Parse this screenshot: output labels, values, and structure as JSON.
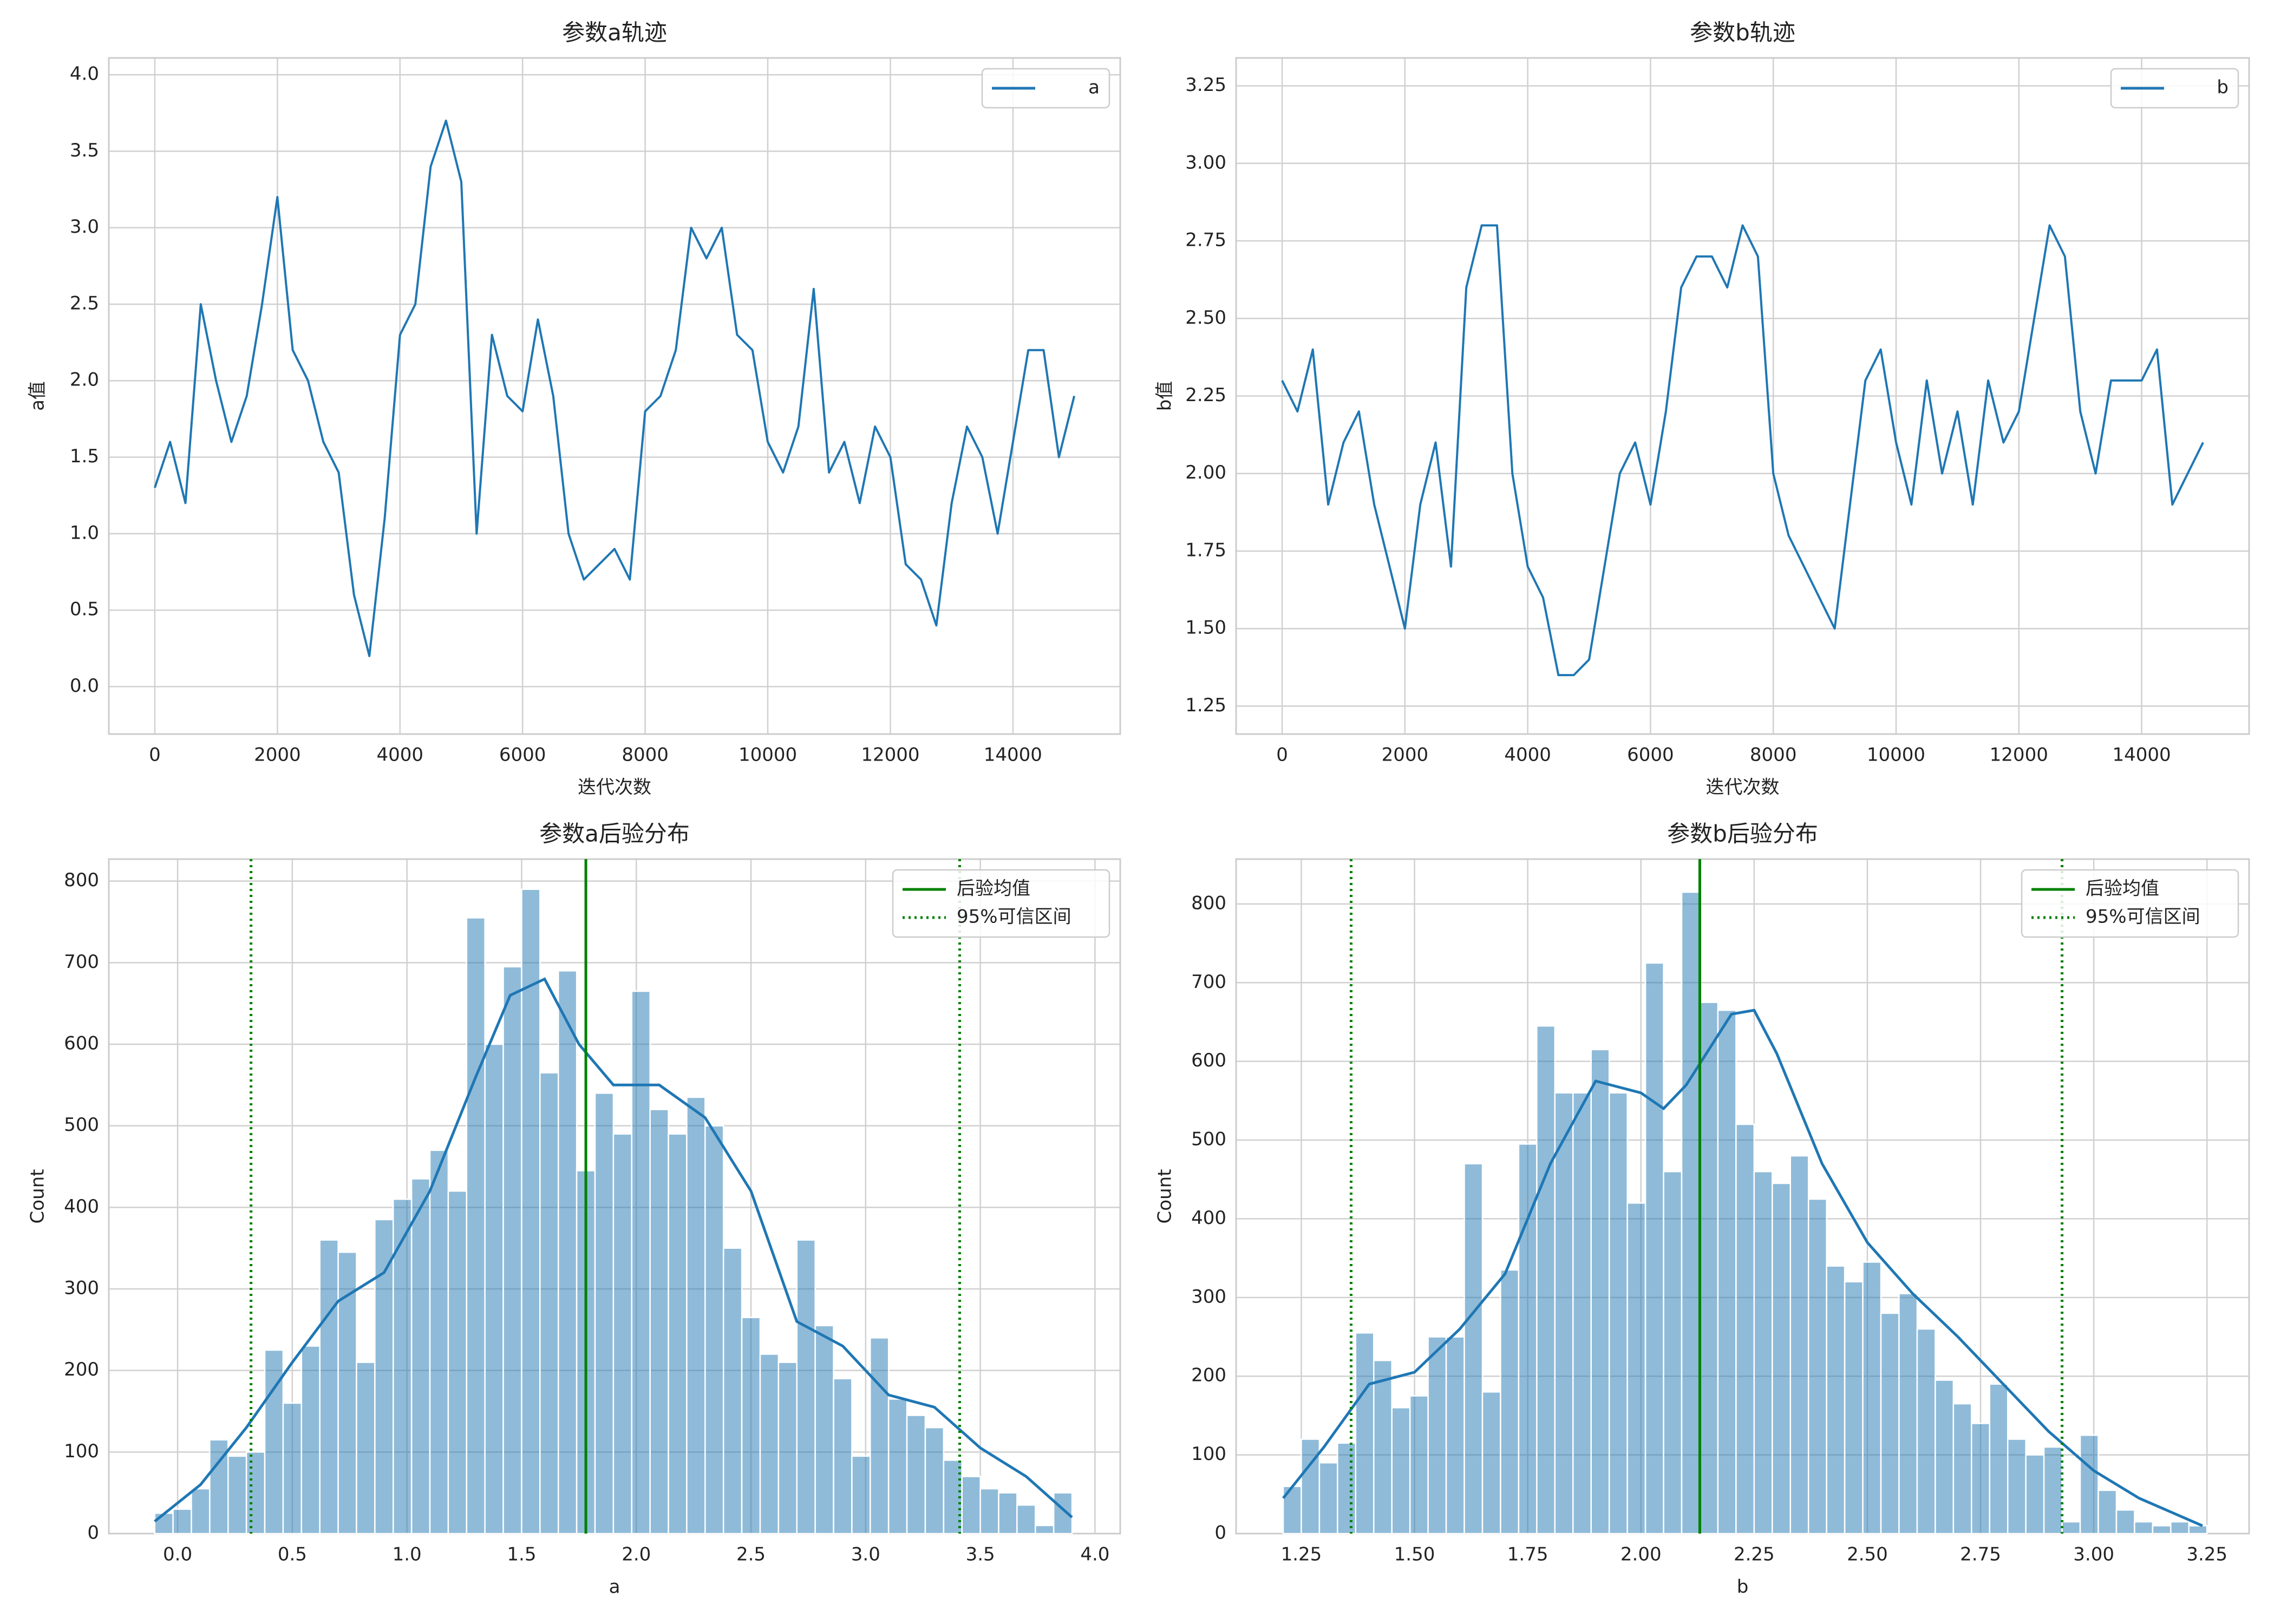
{
  "chart_data": [
    {
      "type": "line",
      "title": "参数a轨迹",
      "xlabel": "迭代次数",
      "ylabel": "a值",
      "x": [
        0,
        250,
        500,
        750,
        1000,
        1250,
        1500,
        1750,
        2000,
        2250,
        2500,
        2750,
        3000,
        3250,
        3500,
        3750,
        4000,
        4250,
        4500,
        4750,
        5000,
        5250,
        5500,
        5750,
        6000,
        6250,
        6500,
        6750,
        7000,
        7250,
        7500,
        7750,
        8000,
        8250,
        8500,
        8750,
        9000,
        9250,
        9500,
        9750,
        10000,
        10250,
        10500,
        10750,
        11000,
        11250,
        11500,
        11750,
        12000,
        12250,
        12500,
        12750,
        13000,
        13250,
        13500,
        13750,
        14000,
        14250,
        14500,
        14750,
        15000
      ],
      "series": [
        {
          "name": "a",
          "color": "#1f77b4",
          "values": [
            1.3,
            1.6,
            1.2,
            2.5,
            2.0,
            1.6,
            1.9,
            2.5,
            3.2,
            2.2,
            2.0,
            1.6,
            1.4,
            0.6,
            0.2,
            1.1,
            2.3,
            2.5,
            3.4,
            3.7,
            3.3,
            1.0,
            2.3,
            1.9,
            1.8,
            2.4,
            1.9,
            1.0,
            0.7,
            0.8,
            0.9,
            0.7,
            1.8,
            1.9,
            2.2,
            3.0,
            2.8,
            3.0,
            2.3,
            2.2,
            1.6,
            1.4,
            1.7,
            2.6,
            1.4,
            1.6,
            1.2,
            1.7,
            1.5,
            0.8,
            0.7,
            0.4,
            1.2,
            1.7,
            1.5,
            1.0,
            1.6,
            2.2,
            2.2,
            1.5,
            1.9
          ]
        }
      ],
      "xlim": [
        -750,
        15750
      ],
      "xticks": [
        0,
        2000,
        4000,
        6000,
        8000,
        10000,
        12000,
        14000
      ],
      "ylim": [
        -0.31,
        4.11
      ],
      "yticks": [
        {
          "value": 0,
          "label": "0.0"
        },
        0.5,
        {
          "value": 1,
          "label": "1.0"
        },
        1.5,
        {
          "value": 2,
          "label": "2.0"
        },
        2.5,
        {
          "value": 3,
          "label": "3.0"
        },
        3.5,
        {
          "value": 4,
          "label": "4.0"
        }
      ],
      "grid": true,
      "legend": "upper right"
    },
    {
      "type": "line",
      "title": "参数b轨迹",
      "xlabel": "迭代次数",
      "ylabel": "b值",
      "x": [
        0,
        250,
        500,
        750,
        1000,
        1250,
        1500,
        1750,
        2000,
        2250,
        2500,
        2750,
        3000,
        3250,
        3500,
        3750,
        4000,
        4250,
        4500,
        4750,
        5000,
        5250,
        5500,
        5750,
        6000,
        6250,
        6500,
        6750,
        7000,
        7250,
        7500,
        7750,
        8000,
        8250,
        8500,
        8750,
        9000,
        9250,
        9500,
        9750,
        10000,
        10250,
        10500,
        10750,
        11000,
        11250,
        11500,
        11750,
        12000,
        12250,
        12500,
        12750,
        13000,
        13250,
        13500,
        13750,
        14000,
        14250,
        14500,
        14750,
        15000
      ],
      "series": [
        {
          "name": "b",
          "color": "#1f77b4",
          "values": [
            2.3,
            2.2,
            2.4,
            1.9,
            2.1,
            2.2,
            1.9,
            1.7,
            1.5,
            1.9,
            2.1,
            1.7,
            2.6,
            2.8,
            2.8,
            2.0,
            1.7,
            1.6,
            1.35,
            1.35,
            1.4,
            1.7,
            2.0,
            2.1,
            1.9,
            2.2,
            2.6,
            2.7,
            2.7,
            2.6,
            2.8,
            2.7,
            2.0,
            1.8,
            1.7,
            1.6,
            1.5,
            1.9,
            2.3,
            2.4,
            2.1,
            1.9,
            2.3,
            2.0,
            2.2,
            1.9,
            2.3,
            2.1,
            2.2,
            2.5,
            2.8,
            2.7,
            2.2,
            2.0,
            2.3,
            2.3,
            2.3,
            2.4,
            1.9,
            2.0,
            2.1
          ]
        }
      ],
      "xlim": [
        -750,
        15750
      ],
      "xticks": [
        0,
        2000,
        4000,
        6000,
        8000,
        10000,
        12000,
        14000
      ],
      "ylim": [
        1.16,
        3.34
      ],
      "yticks": [
        1.25,
        {
          "value": 1.5,
          "label": "1.50"
        },
        1.75,
        {
          "value": 2,
          "label": "2.00"
        },
        2.25,
        {
          "value": 2.5,
          "label": "2.50"
        },
        2.75,
        {
          "value": 3,
          "label": "3.00"
        },
        3.25
      ],
      "grid": true,
      "legend": "upper right"
    },
    {
      "type": "histogram",
      "title": "参数a后验分布",
      "xlabel": "a",
      "ylabel": "Count",
      "color": "#1f77b4",
      "bins": [
        -0.1,
        -0.02,
        0.06,
        0.14,
        0.22,
        0.3,
        0.38,
        0.46,
        0.54,
        0.62,
        0.7,
        0.78,
        0.86,
        0.94,
        1.02,
        1.1,
        1.18,
        1.26,
        1.34,
        1.42,
        1.5,
        1.58,
        1.66,
        1.74,
        1.82,
        1.9,
        1.98,
        2.06,
        2.14,
        2.22,
        2.3,
        2.38,
        2.46,
        2.54,
        2.62,
        2.7,
        2.78,
        2.86,
        2.94,
        3.02,
        3.1,
        3.18,
        3.26,
        3.34,
        3.42,
        3.5,
        3.58,
        3.66,
        3.74,
        3.82,
        3.9
      ],
      "values": [
        25,
        30,
        55,
        115,
        95,
        100,
        225,
        160,
        230,
        360,
        345,
        210,
        385,
        410,
        435,
        470,
        420,
        755,
        600,
        695,
        790,
        565,
        690,
        445,
        540,
        490,
        665,
        520,
        490,
        535,
        500,
        350,
        265,
        220,
        210,
        360,
        255,
        190,
        95,
        240,
        165,
        145,
        130,
        90,
        70,
        55,
        50,
        35,
        10,
        50
      ],
      "kde": {
        "x": [
          -0.1,
          0.1,
          0.3,
          0.5,
          0.7,
          0.9,
          1.1,
          1.3,
          1.45,
          1.6,
          1.75,
          1.9,
          2.1,
          2.3,
          2.5,
          2.7,
          2.9,
          3.1,
          3.3,
          3.5,
          3.7,
          3.9
        ],
        "values": [
          15,
          60,
          130,
          210,
          285,
          320,
          420,
          560,
          660,
          680,
          600,
          550,
          550,
          510,
          420,
          260,
          230,
          170,
          155,
          105,
          70,
          20
        ]
      },
      "lines": [
        {
          "name": "后验均值",
          "color": "#008000",
          "style": "solid",
          "x": [
            1.78
          ]
        },
        {
          "name": "95%可信区间",
          "color": "#008000",
          "style": "dotted",
          "x": [
            0.32,
            3.41
          ]
        }
      ],
      "xlim": [
        -0.3,
        4.11
      ],
      "xticks": [
        {
          "value": 0,
          "label": "0.0"
        },
        0.5,
        {
          "value": 1,
          "label": "1.0"
        },
        1.5,
        {
          "value": 2,
          "label": "2.0"
        },
        2.5,
        {
          "value": 3,
          "label": "3.0"
        },
        3.5,
        {
          "value": 4,
          "label": "4.0"
        }
      ],
      "ylim": [
        0,
        827
      ],
      "yticks": [
        0,
        100,
        200,
        300,
        400,
        500,
        600,
        700,
        800
      ],
      "grid": true,
      "legend": "upper right"
    },
    {
      "type": "histogram",
      "title": "参数b后验分布",
      "xlabel": "b",
      "ylabel": "Count",
      "color": "#1f77b4",
      "bins": [
        1.21,
        1.25,
        1.29,
        1.33,
        1.37,
        1.41,
        1.45,
        1.49,
        1.53,
        1.57,
        1.61,
        1.65,
        1.69,
        1.73,
        1.77,
        1.81,
        1.85,
        1.89,
        1.93,
        1.97,
        2.01,
        2.05,
        2.09,
        2.13,
        2.17,
        2.21,
        2.25,
        2.29,
        2.33,
        2.37,
        2.41,
        2.45,
        2.49,
        2.53,
        2.57,
        2.61,
        2.65,
        2.69,
        2.73,
        2.77,
        2.81,
        2.85,
        2.89,
        2.93,
        2.97,
        3.01,
        3.05,
        3.09,
        3.13,
        3.17,
        3.21,
        3.25
      ],
      "values": [
        60,
        120,
        90,
        115,
        255,
        220,
        160,
        175,
        250,
        250,
        470,
        180,
        335,
        495,
        645,
        560,
        560,
        615,
        560,
        420,
        725,
        460,
        815,
        675,
        665,
        520,
        460,
        445,
        480,
        425,
        340,
        320,
        345,
        280,
        305,
        260,
        195,
        165,
        140,
        190,
        120,
        100,
        110,
        15,
        125,
        55,
        30,
        15,
        10,
        15,
        10
      ],
      "kde": {
        "x": [
          1.21,
          1.3,
          1.4,
          1.5,
          1.6,
          1.7,
          1.8,
          1.9,
          2.0,
          2.05,
          2.1,
          2.2,
          2.25,
          2.3,
          2.4,
          2.5,
          2.6,
          2.7,
          2.8,
          2.9,
          3.0,
          3.1,
          3.24
        ],
        "values": [
          45,
          110,
          190,
          205,
          260,
          330,
          470,
          575,
          560,
          540,
          570,
          660,
          665,
          610,
          470,
          370,
          305,
          250,
          190,
          130,
          80,
          45,
          10
        ]
      },
      "lines": [
        {
          "name": "后验均值",
          "color": "#008000",
          "style": "solid",
          "x": [
            2.13
          ]
        },
        {
          "name": "95%可信区间",
          "color": "#008000",
          "style": "dotted",
          "x": [
            1.36,
            2.93
          ]
        }
      ],
      "xlim": [
        1.106,
        3.343
      ],
      "xticks": [
        1.25,
        {
          "value": 1.5,
          "label": "1.50"
        },
        1.75,
        {
          "value": 2,
          "label": "2.00"
        },
        2.25,
        {
          "value": 2.5,
          "label": "2.50"
        },
        2.75,
        {
          "value": 3,
          "label": "3.00"
        },
        3.25
      ],
      "ylim": [
        0,
        857
      ],
      "yticks": [
        0,
        100,
        200,
        300,
        400,
        500,
        600,
        700,
        800
      ],
      "grid": true,
      "legend": "upper right"
    }
  ]
}
